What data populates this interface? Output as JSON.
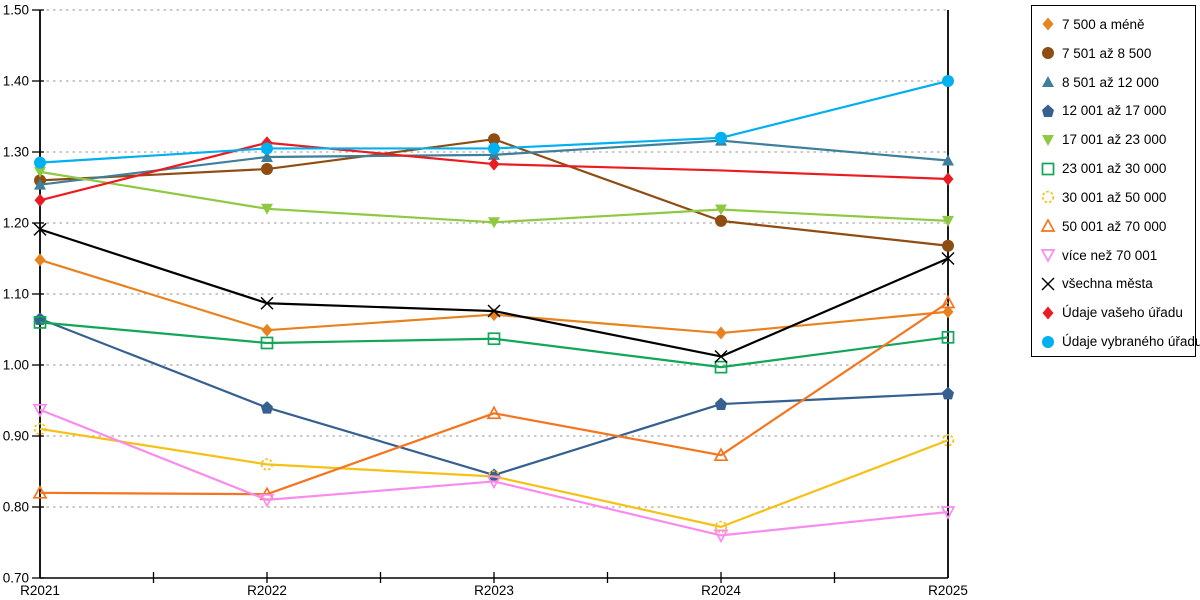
{
  "chart_data": {
    "type": "line",
    "title": "",
    "xlabel": "",
    "ylabel": "",
    "x_labels": [
      "R2021",
      "R2022",
      "R2023",
      "R2024",
      "R2025"
    ],
    "y_tick_labels": [
      "0.70",
      "0.80",
      "0.90",
      "1.00",
      "1.10",
      "1.20",
      "1.30",
      "1.40",
      "1.50"
    ],
    "ylim": [
      0.7,
      1.5
    ],
    "ytick_step": 0.1,
    "grid": "horizontal-dotted",
    "grid_color": "#ababab",
    "axis_color": "#000000",
    "legend_position": "right-outside",
    "series": [
      {
        "name": "7 500 a méně",
        "color": "#E8821F",
        "marker": "diamond",
        "filled": true,
        "values": [
          1.148,
          1.049,
          1.071,
          1.045,
          1.075
        ]
      },
      {
        "name": "7 501 až 8 500",
        "color": "#8F4D13",
        "marker": "circle",
        "filled": true,
        "values": [
          1.26,
          1.276,
          1.318,
          1.203,
          1.168
        ]
      },
      {
        "name": "8 501 až 12 000",
        "color": "#3E7F9C",
        "marker": "triangle-up",
        "filled": true,
        "values": [
          1.254,
          1.293,
          1.296,
          1.316,
          1.288
        ]
      },
      {
        "name": "12 001 až 17 000",
        "color": "#35608F",
        "marker": "pentagon",
        "filled": true,
        "values": [
          1.065,
          0.94,
          0.845,
          0.945,
          0.96
        ]
      },
      {
        "name": "17 001 až 23 000",
        "color": "#8FC841",
        "marker": "triangle-down",
        "filled": true,
        "values": [
          1.272,
          1.22,
          1.201,
          1.219,
          1.203
        ]
      },
      {
        "name": "23 001 až 30 000",
        "color": "#13A558",
        "marker": "square",
        "filled": false,
        "values": [
          1.06,
          1.031,
          1.037,
          0.997,
          1.039
        ]
      },
      {
        "name": "30 001 až 50 000",
        "color": "#F5C117",
        "marker": "circle",
        "filled": false,
        "dashed_marker": true,
        "values": [
          0.91,
          0.86,
          0.843,
          0.772,
          0.894
        ]
      },
      {
        "name": "50 001 až 70 000",
        "color": "#F3751F",
        "marker": "triangle-up",
        "filled": false,
        "values": [
          0.82,
          0.818,
          0.932,
          0.873,
          1.088
        ]
      },
      {
        "name": "více než 70 001",
        "color": "#F98BEF",
        "marker": "triangle-down",
        "filled": false,
        "values": [
          0.937,
          0.81,
          0.836,
          0.76,
          0.793
        ]
      },
      {
        "name": "všechna města",
        "color": "#000000",
        "marker": "x",
        "filled": false,
        "values": [
          1.191,
          1.087,
          1.076,
          1.012,
          1.15
        ]
      },
      {
        "name": "Údaje vašeho úřadu",
        "color": "#EB1C21",
        "marker": "diamond",
        "filled": true,
        "skip_markers": [
          3
        ],
        "values": [
          1.232,
          1.313,
          1.283,
          1.274,
          1.262
        ]
      },
      {
        "name": "Údaje vybraného úřadu",
        "color": "#00B0F0",
        "marker": "circle",
        "filled": true,
        "values": [
          1.285,
          1.305,
          1.305,
          1.32,
          1.4
        ]
      }
    ]
  }
}
